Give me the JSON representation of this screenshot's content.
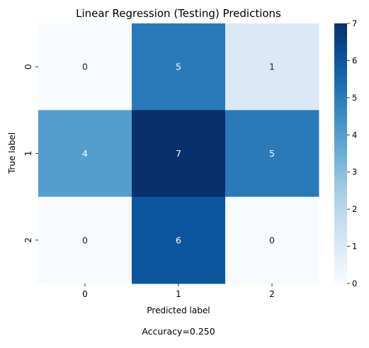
{
  "chart_data": {
    "type": "heatmap",
    "title": "Linear Regression (Testing) Predictions",
    "xlabel": "Predicted label",
    "ylabel": "True label",
    "x_categories": [
      "0",
      "1",
      "2"
    ],
    "y_categories": [
      "0",
      "1",
      "2"
    ],
    "matrix": [
      [
        0,
        5,
        1
      ],
      [
        4,
        7,
        5
      ],
      [
        0,
        6,
        0
      ]
    ],
    "colorbar": {
      "range": [
        0,
        7
      ],
      "ticks": [
        "0",
        "1",
        "2",
        "3",
        "4",
        "5",
        "6",
        "7"
      ],
      "colormap": "Blues"
    },
    "annotation": "Accuracy=0.250"
  },
  "colors": {
    "low": "#f7fbff",
    "high": "#08306b",
    "text_light": "#ffffff",
    "text_dark": "#262626"
  }
}
